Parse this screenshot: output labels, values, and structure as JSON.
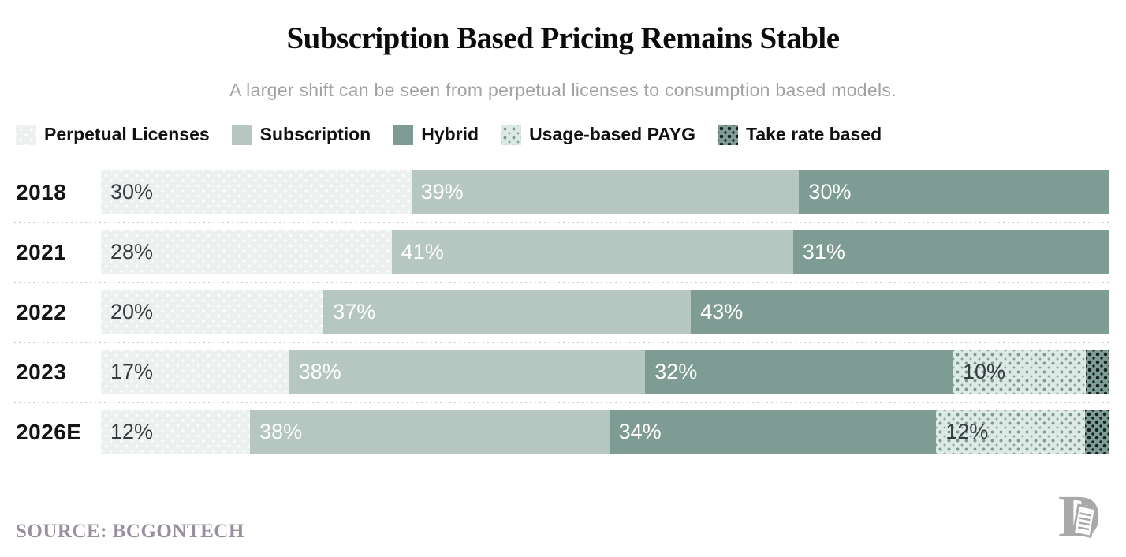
{
  "title": "Subscription Based Pricing Remains Stable",
  "subtitle": "A larger shift can be seen from perpetual licenses to consumption based models.",
  "source": "SOURCE: BCGONTECH",
  "colors": {
    "perpetual_licenses": "#ecf1ef",
    "subscription": "#b6c7c2",
    "hybrid": "#7e9c94",
    "usage_based_payg_bg": "#dde9e5",
    "usage_based_payg_dot": "#7e9c94",
    "take_rate_bg": "#7f9d96",
    "take_rate_dot": "#15201e",
    "label_dark": "#363d40",
    "label_light": "#ffffff",
    "subtitle_gray": "#a2a2a2",
    "source_purple_gray": "#99909f",
    "divider_gray": "#cbcbcb"
  },
  "chart_data": {
    "type": "bar",
    "stacked": true,
    "orientation": "horizontal",
    "unit": "%",
    "title": "Subscription Based Pricing Remains Stable",
    "subtitle": "A larger shift can be seen from perpetual licenses to consumption based models.",
    "categories": [
      "2018",
      "2021",
      "2022",
      "2023",
      "2026E"
    ],
    "series": [
      {
        "name": "Perpetual Licenses",
        "key": "perpetual",
        "label_color": "dark",
        "pattern": "white dots on pale green",
        "values": [
          30,
          28,
          20,
          17,
          12
        ]
      },
      {
        "name": "Subscription",
        "key": "subscription",
        "label_color": "light",
        "pattern": "solid",
        "values": [
          39,
          41,
          37,
          38,
          38
        ]
      },
      {
        "name": "Hybrid",
        "key": "hybrid",
        "label_color": "light",
        "pattern": "solid",
        "values": [
          30,
          31,
          43,
          32,
          34
        ]
      },
      {
        "name": "Usage-based PAYG",
        "key": "payg",
        "label_color": "dark",
        "pattern": "green dots on pale green",
        "values": [
          0,
          0,
          0,
          10,
          12
        ]
      },
      {
        "name": "Take rate based",
        "key": "take",
        "label_color": "dark",
        "pattern": "black dots on green",
        "values": [
          0,
          0,
          0,
          3,
          3
        ]
      }
    ],
    "legend_position": "top-left",
    "value_labels": "inside segment start; hidden when value below 10%",
    "axis": "none (percent labels inside bars, rows normalized to full width)"
  }
}
